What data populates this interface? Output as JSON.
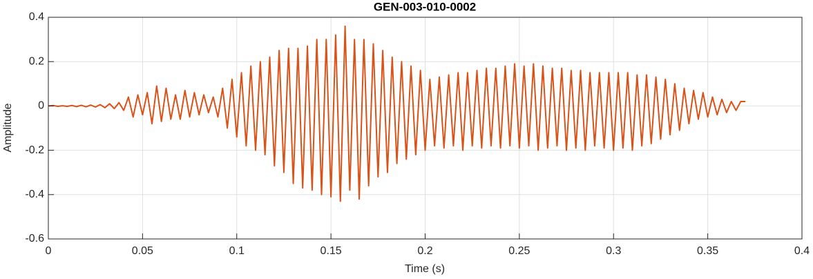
{
  "chart_data": {
    "type": "line",
    "title": "GEN-003-010-0002",
    "xlabel": "Time (s)",
    "ylabel": "Amplitude",
    "color": "#d95319",
    "grid": true,
    "xlim": [
      0,
      0.4
    ],
    "xticks": [
      0,
      0.05,
      0.1,
      0.15,
      0.2,
      0.25,
      0.3,
      0.35,
      0.4
    ],
    "ylim": [
      -0.6,
      0.4
    ],
    "yticks": [
      -0.6,
      -0.4,
      -0.2,
      0,
      0.2,
      0.4
    ],
    "x": [
      0,
      0.0025,
      0.005,
      0.0075,
      0.01,
      0.0125,
      0.015,
      0.0175,
      0.02,
      0.0225,
      0.025,
      0.0275,
      0.03,
      0.0325,
      0.035,
      0.0375,
      0.04,
      0.0425,
      0.045,
      0.0475,
      0.05,
      0.0525,
      0.055,
      0.0575,
      0.06,
      0.0625,
      0.065,
      0.0675,
      0.07,
      0.0725,
      0.075,
      0.0775,
      0.08,
      0.0825,
      0.085,
      0.0875,
      0.09,
      0.0925,
      0.095,
      0.0975,
      0.1,
      0.1025,
      0.105,
      0.1075,
      0.11,
      0.1125,
      0.115,
      0.1175,
      0.12,
      0.1225,
      0.125,
      0.1275,
      0.13,
      0.1325,
      0.135,
      0.1375,
      0.14,
      0.1425,
      0.145,
      0.1475,
      0.15,
      0.1525,
      0.155,
      0.1575,
      0.16,
      0.1625,
      0.165,
      0.1675,
      0.17,
      0.1725,
      0.175,
      0.1775,
      0.18,
      0.1825,
      0.185,
      0.1875,
      0.19,
      0.1925,
      0.195,
      0.1975,
      0.2,
      0.2025,
      0.205,
      0.2075,
      0.21,
      0.2125,
      0.215,
      0.2175,
      0.22,
      0.2225,
      0.225,
      0.2275,
      0.23,
      0.2325,
      0.235,
      0.2375,
      0.24,
      0.2425,
      0.245,
      0.2475,
      0.25,
      0.2525,
      0.255,
      0.2575,
      0.26,
      0.2625,
      0.265,
      0.2675,
      0.27,
      0.2725,
      0.275,
      0.2775,
      0.28,
      0.2825,
      0.285,
      0.2875,
      0.29,
      0.2925,
      0.295,
      0.2975,
      0.3,
      0.3025,
      0.305,
      0.3075,
      0.31,
      0.3125,
      0.315,
      0.3175,
      0.32,
      0.3225,
      0.325,
      0.3275,
      0.33,
      0.3325,
      0.335,
      0.3375,
      0.34,
      0.3425,
      0.345,
      0.3475,
      0.35,
      0.3525,
      0.355,
      0.3575,
      0.36,
      0.3625,
      0.365,
      0.3675,
      0.37
    ],
    "values": [
      0,
      0.002,
      -0.002,
      0.001,
      -0.002,
      0.002,
      -0.003,
      0.003,
      -0.004,
      0.004,
      -0.005,
      0.006,
      -0.008,
      0.01,
      -0.012,
      0.015,
      -0.02,
      0.04,
      -0.05,
      0.05,
      -0.04,
      0.06,
      -0.08,
      0.09,
      -0.07,
      0.08,
      -0.06,
      0.05,
      -0.06,
      0.07,
      -0.05,
      0.06,
      -0.04,
      0.05,
      -0.03,
      0.04,
      -0.05,
      0.08,
      -0.1,
      0.12,
      -0.14,
      0.15,
      -0.18,
      0.18,
      -0.2,
      0.2,
      -0.22,
      0.22,
      -0.27,
      0.25,
      -0.3,
      0.26,
      -0.35,
      0.26,
      -0.37,
      0.27,
      -0.38,
      0.3,
      -0.4,
      0.3,
      -0.41,
      0.32,
      -0.43,
      0.36,
      -0.38,
      0.3,
      -0.42,
      0.3,
      -0.36,
      0.28,
      -0.32,
      0.25,
      -0.3,
      0.22,
      -0.26,
      0.2,
      -0.24,
      0.18,
      -0.22,
      0.16,
      -0.2,
      0.12,
      -0.18,
      0.13,
      -0.19,
      0.14,
      -0.18,
      0.15,
      -0.2,
      0.15,
      -0.18,
      0.16,
      -0.19,
      0.17,
      -0.18,
      0.17,
      -0.19,
      0.18,
      -0.18,
      0.19,
      -0.19,
      0.18,
      -0.18,
      0.19,
      -0.2,
      0.18,
      -0.19,
      0.17,
      -0.18,
      0.17,
      -0.2,
      0.16,
      -0.19,
      0.16,
      -0.2,
      0.15,
      -0.18,
      0.15,
      -0.19,
      0.15,
      -0.2,
      0.15,
      -0.19,
      0.15,
      -0.2,
      0.14,
      -0.18,
      0.14,
      -0.17,
      0.13,
      -0.15,
      0.12,
      -0.13,
      0.1,
      -0.11,
      0.08,
      -0.08,
      0.07,
      -0.06,
      0.06,
      -0.05,
      0.04,
      -0.04,
      0.03,
      -0.03,
      0.02,
      -0.02,
      0.02,
      0.02
    ]
  }
}
